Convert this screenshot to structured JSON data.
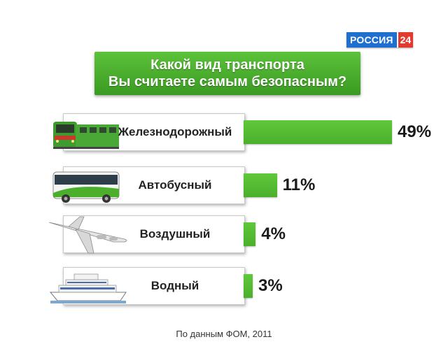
{
  "logo": {
    "name": "РОССИЯ",
    "number": "24"
  },
  "title": {
    "line1": "Какой вид транспорта",
    "line2": "Вы считаете самым безопасным?"
  },
  "footer": "По данным ФОМ, 2011",
  "colors": {
    "bar": "#4caf2c",
    "title_bg": "#4caf2c",
    "logo_blue": "#1f6fd1",
    "logo_red": "#e23a2f"
  },
  "chart_data": {
    "type": "bar",
    "orientation": "horizontal",
    "categories": [
      "Железнодорожный",
      "Автобусный",
      "Воздушный",
      "Водный"
    ],
    "values": [
      49,
      11,
      4,
      3
    ],
    "value_labels": [
      "49%",
      "11%",
      "4%",
      "3%"
    ],
    "icons": [
      "train-icon",
      "bus-icon",
      "airplane-icon",
      "ship-icon"
    ],
    "unit": "%",
    "xlim": [
      0,
      49
    ]
  }
}
